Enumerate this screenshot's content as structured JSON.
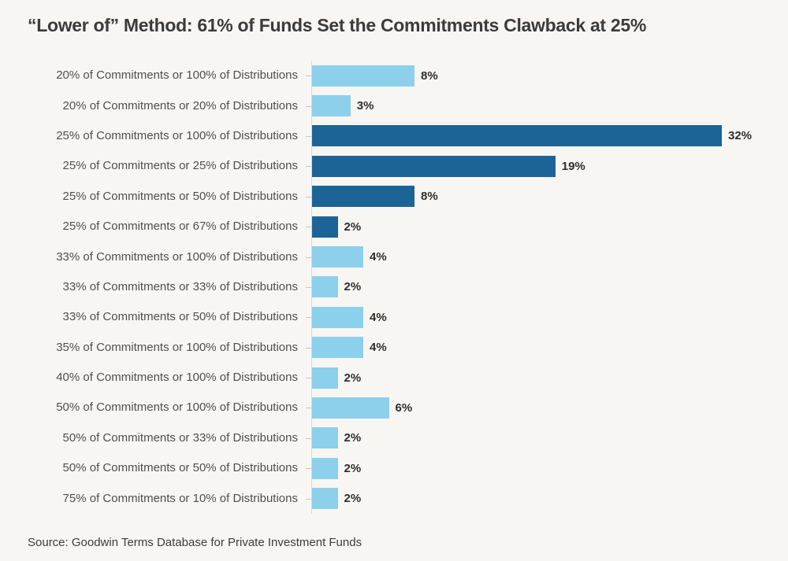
{
  "header": {
    "title": "“Lower of” Method: 61% of Funds Set the Commitments Clawback at 25%"
  },
  "footer": {
    "source": "Source: Goodwin Terms Database for Private Investment Funds"
  },
  "colors": {
    "background": "#f7f6f2",
    "bar_light": "#8dd0ec",
    "bar_dark": "#1d6496",
    "axis": "#dbd9d4",
    "tick": "#c8c6c1",
    "title_text": "#3b3b3b",
    "label_text": "#4f4f4f",
    "value_text": "#2e2e2e"
  },
  "chart_data": {
    "type": "bar",
    "orientation": "horizontal",
    "title": "“Lower of” Method: 61% of Funds Set the Commitments Clawback at 25%",
    "xlabel": "",
    "ylabel": "",
    "unit": "%",
    "xlim": [
      0,
      32
    ],
    "grid": false,
    "legend": false,
    "categories": [
      "20% of Commitments or 100% of Distributions",
      "20% of Commitments or 20% of Distributions",
      "25% of Commitments or 100% of Distributions",
      "25% of Commitments or 25% of Distributions",
      "25% of Commitments or 50% of Distributions",
      "25% of Commitments or 67% of Distributions",
      "33% of Commitments or 100% of Distributions",
      "33% of Commitments or 33% of Distributions",
      "33% of Commitments or 50% of Distributions",
      "35% of Commitments or 100% of Distributions",
      "40% of Commitments or 100% of Distributions",
      "50% of Commitments or 100% of Distributions",
      "50% of Commitments or 33% of Distributions",
      "50% of Commitments or 50% of Distributions",
      "75% of Commitments or 10% of Distributions"
    ],
    "values": [
      8,
      3,
      32,
      19,
      8,
      2,
      4,
      2,
      4,
      4,
      2,
      6,
      2,
      2,
      2
    ],
    "value_labels": [
      "8%",
      "3%",
      "32%",
      "19%",
      "8%",
      "2%",
      "4%",
      "2%",
      "4%",
      "4%",
      "2%",
      "6%",
      "2%",
      "2%",
      "2%"
    ],
    "bar_colors": [
      "light",
      "light",
      "dark",
      "dark",
      "dark",
      "dark",
      "light",
      "light",
      "light",
      "light",
      "light",
      "light",
      "light",
      "light",
      "light"
    ]
  }
}
